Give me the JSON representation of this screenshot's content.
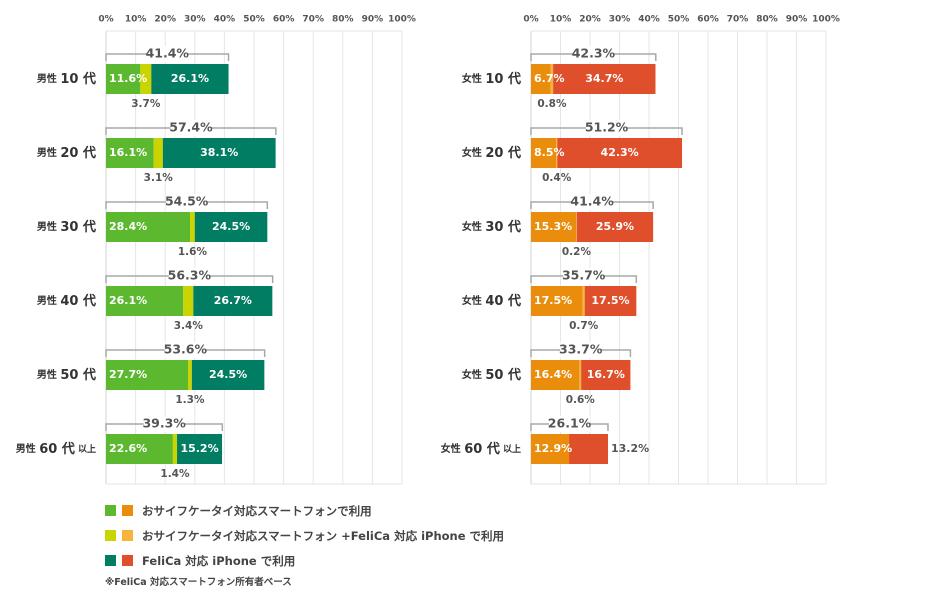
{
  "colors": {
    "male": [
      "#5cb82f",
      "#c9d400",
      "#007d62"
    ],
    "female": [
      "#ea8d0c",
      "#f6b53a",
      "#e04f2c"
    ],
    "grid": "#e6e6e6",
    "axis": "#d3d3d3",
    "bracket": "#a8a8a8"
  },
  "chart_data": [
    {
      "type": "bar",
      "orientation": "horizontal",
      "stacked": true,
      "xlim": [
        0,
        100
      ],
      "ticks": [
        "0%",
        "10%",
        "20%",
        "30%",
        "40%",
        "50%",
        "60%",
        "70%",
        "80%",
        "90%",
        "100%"
      ],
      "categories": [
        "男性 10 代",
        "男性 20 代",
        "男性 30 代",
        "男性 40 代",
        "男性 50 代",
        "男性 60 代 以上"
      ],
      "category_parts": [
        {
          "sex": "男性",
          "age": "10 代",
          "suffix": ""
        },
        {
          "sex": "男性",
          "age": "20 代",
          "suffix": ""
        },
        {
          "sex": "男性",
          "age": "30 代",
          "suffix": ""
        },
        {
          "sex": "男性",
          "age": "40 代",
          "suffix": ""
        },
        {
          "sex": "男性",
          "age": "50 代",
          "suffix": ""
        },
        {
          "sex": "男性",
          "age": "60 代",
          "suffix": "以上"
        }
      ],
      "series": [
        {
          "name": "おサイフケータイ対応スマートフォンで利用",
          "values": [
            11.6,
            16.1,
            28.4,
            26.1,
            27.7,
            22.6
          ]
        },
        {
          "name": "おサイフケータイ対応スマートフォン +FeliCa 対応 iPhone で利用",
          "values": [
            3.7,
            3.1,
            1.6,
            3.4,
            1.3,
            1.4
          ]
        },
        {
          "name": "FeliCa 対応 iPhone で利用",
          "values": [
            26.1,
            38.1,
            24.5,
            26.7,
            24.5,
            15.2
          ]
        }
      ],
      "labels": {
        "first": [
          "11.6%",
          "16.1%",
          "28.4%",
          "26.1%",
          "27.7%",
          "22.6%"
        ],
        "middle": [
          "3.7%",
          "3.1%",
          "1.6%",
          "3.4%",
          "1.3%",
          "1.4%"
        ],
        "last": [
          "26.1%",
          "38.1%",
          "24.5%",
          "26.7%",
          "24.5%",
          "15.2%"
        ],
        "total": [
          "41.4%",
          "57.4%",
          "54.5%",
          "56.3%",
          "53.6%",
          "39.3%"
        ]
      },
      "last_label_outside": [
        false,
        false,
        false,
        false,
        false,
        false
      ],
      "totals": [
        41.4,
        57.4,
        54.5,
        56.3,
        53.6,
        39.3
      ],
      "grid": true
    },
    {
      "type": "bar",
      "orientation": "horizontal",
      "stacked": true,
      "xlim": [
        0,
        100
      ],
      "ticks": [
        "0%",
        "10%",
        "20%",
        "30%",
        "40%",
        "50%",
        "60%",
        "70%",
        "80%",
        "90%",
        "100%"
      ],
      "categories": [
        "女性 10 代",
        "女性 20 代",
        "女性 30 代",
        "女性 40 代",
        "女性 50 代",
        "女性 60 代 以上"
      ],
      "category_parts": [
        {
          "sex": "女性",
          "age": "10 代",
          "suffix": ""
        },
        {
          "sex": "女性",
          "age": "20 代",
          "suffix": ""
        },
        {
          "sex": "女性",
          "age": "30 代",
          "suffix": ""
        },
        {
          "sex": "女性",
          "age": "40 代",
          "suffix": ""
        },
        {
          "sex": "女性",
          "age": "50 代",
          "suffix": ""
        },
        {
          "sex": "女性",
          "age": "60 代",
          "suffix": "以上"
        }
      ],
      "series": [
        {
          "name": "おサイフケータイ対応スマートフォンで利用",
          "values": [
            6.7,
            8.5,
            15.3,
            17.5,
            16.4,
            12.9
          ]
        },
        {
          "name": "おサイフケータイ対応スマートフォン +FeliCa 対応 iPhone で利用",
          "values": [
            0.8,
            0.4,
            0.2,
            0.7,
            0.6,
            0
          ]
        },
        {
          "name": "FeliCa 対応 iPhone で利用",
          "values": [
            34.7,
            42.3,
            25.9,
            17.5,
            16.7,
            13.2
          ]
        }
      ],
      "labels": {
        "first": [
          "6.7%",
          "8.5%",
          "15.3%",
          "17.5%",
          "16.4%",
          "12.9%"
        ],
        "middle": [
          "0.8%",
          "0.4%",
          "0.2%",
          "0.7%",
          "0.6%",
          ""
        ],
        "last": [
          "34.7%",
          "42.3%",
          "25.9%",
          "17.5%",
          "16.7%",
          "13.2%"
        ],
        "total": [
          "42.3%",
          "51.2%",
          "41.4%",
          "35.7%",
          "33.7%",
          "26.1%"
        ]
      },
      "last_label_outside": [
        false,
        false,
        false,
        false,
        false,
        true
      ],
      "totals": [
        42.3,
        51.2,
        41.4,
        35.7,
        33.7,
        26.1
      ],
      "grid": true
    }
  ],
  "legend": [
    {
      "label": "おサイフケータイ対応スマートフォンで利用"
    },
    {
      "label": "おサイフケータイ対応スマートフォン +FeliCa 対応 iPhone で利用"
    },
    {
      "label": "FeliCa 対応 iPhone で利用"
    }
  ],
  "footnote": "※FeliCa 対応スマートフォン所有者ベース"
}
